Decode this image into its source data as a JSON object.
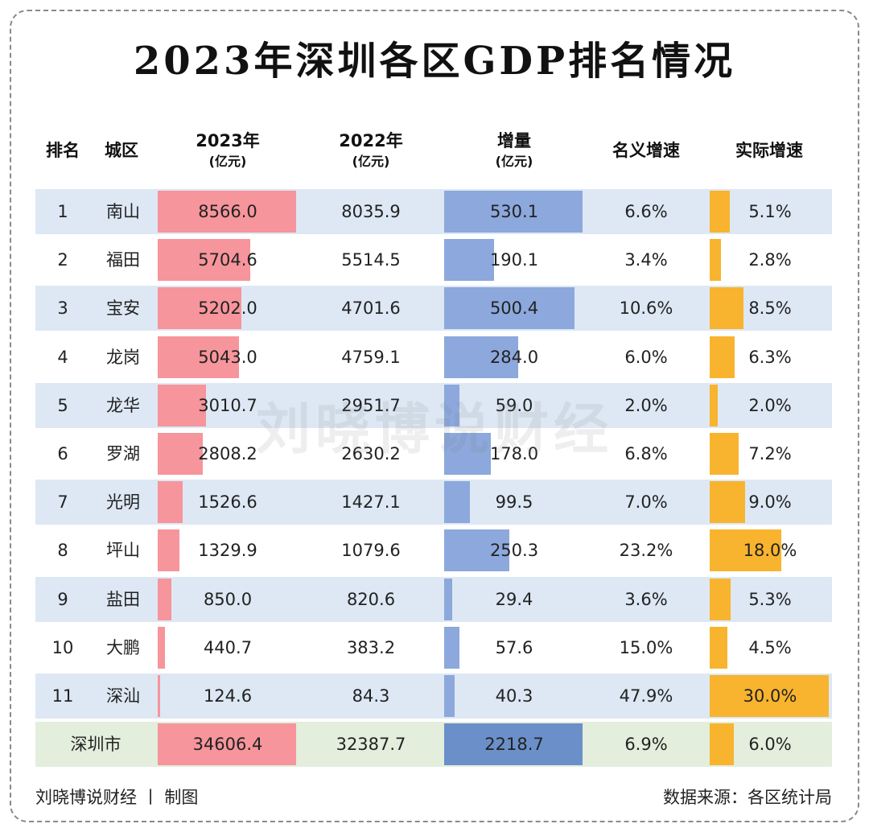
{
  "chart_data": {
    "type": "table",
    "title": "2023年深圳各区GDP排名情况",
    "columns": [
      {
        "label": "排名",
        "unit": ""
      },
      {
        "label": "城区",
        "unit": ""
      },
      {
        "label": "2023年",
        "unit": "(亿元)"
      },
      {
        "label": "2022年",
        "unit": "(亿元)"
      },
      {
        "label": "增量",
        "unit": "(亿元)"
      },
      {
        "label": "名义增速",
        "unit": ""
      },
      {
        "label": "实际增速",
        "unit": ""
      }
    ],
    "rows": [
      {
        "rank": "1",
        "district": "南山",
        "gdp2023": 8566.0,
        "gdp2022": 8035.9,
        "increment": 530.1,
        "nominal": "6.6%",
        "real": 5.1
      },
      {
        "rank": "2",
        "district": "福田",
        "gdp2023": 5704.6,
        "gdp2022": 5514.5,
        "increment": 190.1,
        "nominal": "3.4%",
        "real": 2.8
      },
      {
        "rank": "3",
        "district": "宝安",
        "gdp2023": 5202.0,
        "gdp2022": 4701.6,
        "increment": 500.4,
        "nominal": "10.6%",
        "real": 8.5
      },
      {
        "rank": "4",
        "district": "龙岗",
        "gdp2023": 5043.0,
        "gdp2022": 4759.1,
        "increment": 284.0,
        "nominal": "6.0%",
        "real": 6.3
      },
      {
        "rank": "5",
        "district": "龙华",
        "gdp2023": 3010.7,
        "gdp2022": 2951.7,
        "increment": 59.0,
        "nominal": "2.0%",
        "real": 2.0
      },
      {
        "rank": "6",
        "district": "罗湖",
        "gdp2023": 2808.2,
        "gdp2022": 2630.2,
        "increment": 178.0,
        "nominal": "6.8%",
        "real": 7.2
      },
      {
        "rank": "7",
        "district": "光明",
        "gdp2023": 1526.6,
        "gdp2022": 1427.1,
        "increment": 99.5,
        "nominal": "7.0%",
        "real": 9.0
      },
      {
        "rank": "8",
        "district": "坪山",
        "gdp2023": 1329.9,
        "gdp2022": 1079.6,
        "increment": 250.3,
        "nominal": "23.2%",
        "real": 18.0
      },
      {
        "rank": "9",
        "district": "盐田",
        "gdp2023": 850.0,
        "gdp2022": 820.6,
        "increment": 29.4,
        "nominal": "3.6%",
        "real": 5.3
      },
      {
        "rank": "10",
        "district": "大鹏",
        "gdp2023": 440.7,
        "gdp2022": 383.2,
        "increment": 57.6,
        "nominal": "15.0%",
        "real": 4.5
      },
      {
        "rank": "11",
        "district": "深汕",
        "gdp2023": 124.6,
        "gdp2022": 84.3,
        "increment": 40.3,
        "nominal": "47.9%",
        "real": 30.0
      }
    ],
    "total": {
      "district": "深圳市",
      "gdp2023": 34606.4,
      "gdp2022": 32387.7,
      "increment": 2218.7,
      "nominal": "6.9%",
      "real": 6.0
    },
    "bar_max": {
      "gdp2023": 8566.0,
      "increment": 530.1,
      "real": 30.0
    }
  },
  "colors": {
    "row_band": "#dde8f4",
    "total_band": "#e3eedc",
    "gdp_bar": "#f6959b",
    "increment_bar": "#8ca8dc",
    "increment_bar_total": "#6b8fc9",
    "real_bar": "#f8b42e"
  },
  "footer": {
    "left": "刘晓博说财经 丨 制图",
    "right": "数据来源：各区统计局"
  },
  "watermark": "刘晓博说财经"
}
